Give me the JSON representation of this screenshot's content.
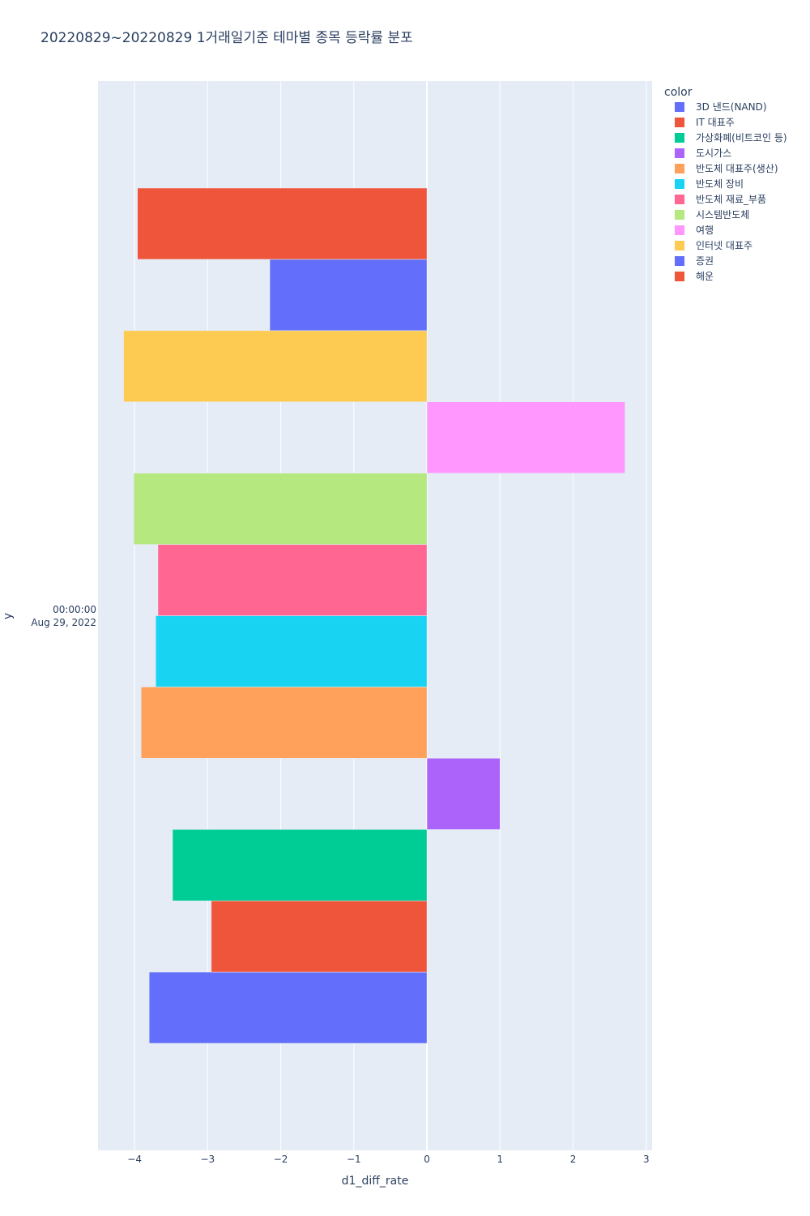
{
  "chart_data": {
    "type": "bar",
    "orientation": "horizontal",
    "title": "20220829~20220829 1거래일기준 테마별 종목 등락률 분포",
    "xlabel": "d1_diff_rate",
    "ylabel": "y",
    "y_category": [
      "00:00:00",
      "Aug 29, 2022"
    ],
    "xlim": [
      -4.5,
      3.08
    ],
    "x_ticks": [
      -4,
      -3,
      -2,
      -1,
      0,
      1,
      2,
      3
    ],
    "x_tick_labels": [
      "−4",
      "−3",
      "−2",
      "−1",
      "0",
      "1",
      "2",
      "3"
    ],
    "grid": true,
    "legend_title": "color",
    "legend_position": "top-right",
    "series": [
      {
        "name": "3D 낸드(NAND)",
        "value": -3.8,
        "color": "#636efa"
      },
      {
        "name": "IT 대표주",
        "value": -2.95,
        "color": "#ef553b"
      },
      {
        "name": "가상화폐(비트코인 등)",
        "value": -3.48,
        "color": "#00cc96"
      },
      {
        "name": "도시가스",
        "value": 1.0,
        "color": "#ab63fa"
      },
      {
        "name": "반도체 대표주(생산)",
        "value": -3.91,
        "color": "#ffa15a"
      },
      {
        "name": "반도체 장비",
        "value": -3.71,
        "color": "#19d3f3"
      },
      {
        "name": "반도체 재료_부품",
        "value": -3.68,
        "color": "#ff6692"
      },
      {
        "name": "시스템반도체",
        "value": -4.01,
        "color": "#b6e880"
      },
      {
        "name": "여행",
        "value": 2.71,
        "color": "#ff97ff"
      },
      {
        "name": "인터넷 대표주",
        "value": -4.15,
        "color": "#fecb52"
      },
      {
        "name": "증권",
        "value": -2.15,
        "color": "#636efa"
      },
      {
        "name": "해운",
        "value": -3.96,
        "color": "#ef553b"
      }
    ]
  }
}
